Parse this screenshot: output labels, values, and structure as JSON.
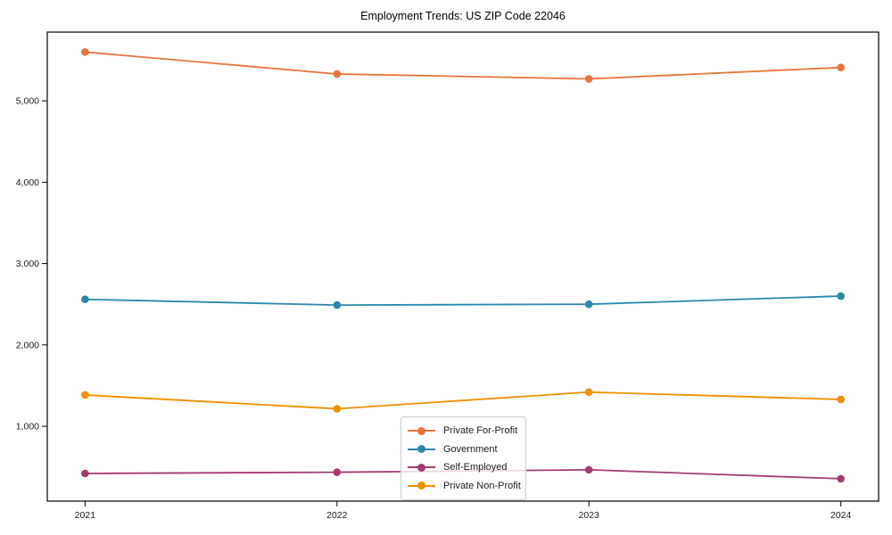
{
  "chart_data": {
    "type": "line",
    "title": "Employment Trends: US ZIP Code 22046",
    "categories": [
      2021,
      2022,
      2023,
      2024
    ],
    "xtick_labels": [
      "2021",
      "2022",
      "2023",
      "2024"
    ],
    "yticks": [
      1000,
      2000,
      3000,
      4000,
      5000
    ],
    "ytick_labels": [
      "1,000",
      "2,000",
      "3,000",
      "4,000",
      "5,000"
    ],
    "series": [
      {
        "name": "Private For-Profit",
        "color": "#E8743B",
        "values": [
          5600,
          5330,
          5270,
          5410
        ]
      },
      {
        "name": "Government",
        "color": "#2E86AB",
        "values": [
          2560,
          2490,
          2500,
          2600
        ]
      },
      {
        "name": "Self-Employed",
        "color": "#A23B72",
        "values": [
          420,
          435,
          465,
          355
        ]
      },
      {
        "name": "Private Non-Profit",
        "color": "#F18F01",
        "values": [
          1385,
          1215,
          1420,
          1330
        ]
      }
    ],
    "xlabel": "",
    "ylabel": "",
    "xlim": [
      2020.85,
      2024.15
    ],
    "ylim": [
      80,
      5845
    ],
    "grid": false,
    "legend_position": "lower-center",
    "marker": "circle",
    "frame_color": "#000000",
    "background_color": "#ffffff"
  }
}
